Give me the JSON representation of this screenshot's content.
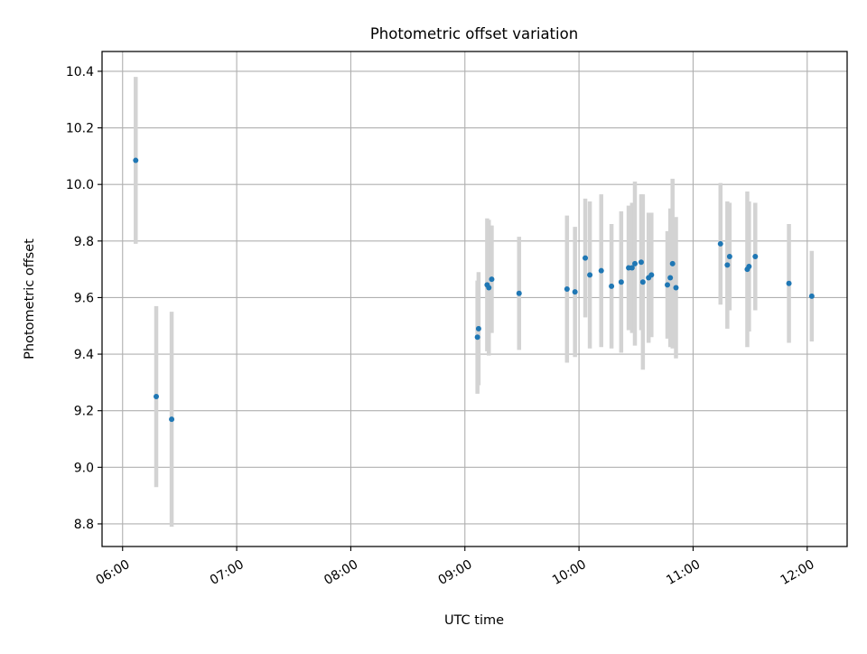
{
  "chart_data": {
    "type": "scatter",
    "title": "Photometric offset variation",
    "xlabel": "UTC time",
    "ylabel": "Photometric offset",
    "xlim_hours": [
      5.82,
      12.35
    ],
    "ylim": [
      8.72,
      10.47
    ],
    "grid": true,
    "x_ticks": [
      {
        "hour": 6,
        "label": "06:00"
      },
      {
        "hour": 7,
        "label": "07:00"
      },
      {
        "hour": 8,
        "label": "08:00"
      },
      {
        "hour": 9,
        "label": "09:00"
      },
      {
        "hour": 10,
        "label": "10:00"
      },
      {
        "hour": 11,
        "label": "11:00"
      },
      {
        "hour": 12,
        "label": "12:00"
      }
    ],
    "y_ticks": [
      {
        "value": 8.8,
        "label": "8.8"
      },
      {
        "value": 9.0,
        "label": "9.0"
      },
      {
        "value": 9.2,
        "label": "9.2"
      },
      {
        "value": 9.4,
        "label": "9.4"
      },
      {
        "value": 9.6,
        "label": "9.6"
      },
      {
        "value": 9.8,
        "label": "9.8"
      },
      {
        "value": 10.0,
        "label": "10.0"
      },
      {
        "value": 10.2,
        "label": "10.2"
      },
      {
        "value": 10.4,
        "label": "10.4"
      }
    ],
    "colors": {
      "point": "#1f77b4",
      "errorbar": "#d3d3d3",
      "grid": "#b0b0b0"
    },
    "series": [
      {
        "name": "offset",
        "points": [
          {
            "t": 6.115,
            "y": 10.085,
            "err": 0.295
          },
          {
            "t": 6.295,
            "y": 9.25,
            "err": 0.32
          },
          {
            "t": 6.43,
            "y": 9.17,
            "err": 0.38
          },
          {
            "t": 9.11,
            "y": 9.46,
            "err": 0.2
          },
          {
            "t": 9.12,
            "y": 9.49,
            "err": 0.2
          },
          {
            "t": 9.195,
            "y": 9.645,
            "err": 0.235
          },
          {
            "t": 9.21,
            "y": 9.635,
            "err": 0.24
          },
          {
            "t": 9.235,
            "y": 9.665,
            "err": 0.19
          },
          {
            "t": 9.475,
            "y": 9.615,
            "err": 0.2
          },
          {
            "t": 9.895,
            "y": 9.63,
            "err": 0.26
          },
          {
            "t": 9.965,
            "y": 9.62,
            "err": 0.23
          },
          {
            "t": 10.055,
            "y": 9.74,
            "err": 0.21
          },
          {
            "t": 10.095,
            "y": 9.68,
            "err": 0.26
          },
          {
            "t": 10.195,
            "y": 9.695,
            "err": 0.27
          },
          {
            "t": 10.285,
            "y": 9.64,
            "err": 0.22
          },
          {
            "t": 10.37,
            "y": 9.655,
            "err": 0.25
          },
          {
            "t": 10.435,
            "y": 9.705,
            "err": 0.22
          },
          {
            "t": 10.465,
            "y": 9.705,
            "err": 0.23
          },
          {
            "t": 10.49,
            "y": 9.72,
            "err": 0.29
          },
          {
            "t": 10.545,
            "y": 9.725,
            "err": 0.24
          },
          {
            "t": 10.56,
            "y": 9.655,
            "err": 0.31
          },
          {
            "t": 10.61,
            "y": 9.67,
            "err": 0.23
          },
          {
            "t": 10.635,
            "y": 9.68,
            "err": 0.22
          },
          {
            "t": 10.775,
            "y": 9.645,
            "err": 0.19
          },
          {
            "t": 10.8,
            "y": 9.67,
            "err": 0.245
          },
          {
            "t": 10.82,
            "y": 9.72,
            "err": 0.3
          },
          {
            "t": 10.85,
            "y": 9.635,
            "err": 0.25
          },
          {
            "t": 11.24,
            "y": 9.79,
            "err": 0.215
          },
          {
            "t": 11.3,
            "y": 9.715,
            "err": 0.225
          },
          {
            "t": 11.32,
            "y": 9.745,
            "err": 0.19
          },
          {
            "t": 11.475,
            "y": 9.7,
            "err": 0.275
          },
          {
            "t": 11.49,
            "y": 9.71,
            "err": 0.23
          },
          {
            "t": 11.545,
            "y": 9.745,
            "err": 0.19
          },
          {
            "t": 11.84,
            "y": 9.65,
            "err": 0.21
          },
          {
            "t": 12.04,
            "y": 9.605,
            "err": 0.16
          }
        ]
      }
    ]
  }
}
